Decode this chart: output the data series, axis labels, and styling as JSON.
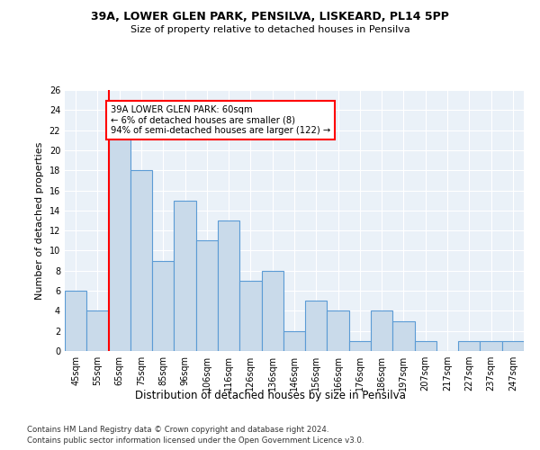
{
  "title1": "39A, LOWER GLEN PARK, PENSILVA, LISKEARD, PL14 5PP",
  "title2": "Size of property relative to detached houses in Pensilva",
  "xlabel": "Distribution of detached houses by size in Pensilva",
  "ylabel": "Number of detached properties",
  "categories": [
    "45sqm",
    "55sqm",
    "65sqm",
    "75sqm",
    "85sqm",
    "96sqm",
    "106sqm",
    "116sqm",
    "126sqm",
    "136sqm",
    "146sqm",
    "156sqm",
    "166sqm",
    "176sqm",
    "186sqm",
    "197sqm",
    "207sqm",
    "217sqm",
    "227sqm",
    "237sqm",
    "247sqm"
  ],
  "values": [
    6,
    4,
    22,
    18,
    9,
    15,
    11,
    13,
    7,
    8,
    2,
    5,
    4,
    1,
    4,
    3,
    1,
    0,
    1,
    1,
    1
  ],
  "bar_color": "#c9daea",
  "bar_edge_color": "#5b9bd5",
  "annotation_text_line1": "39A LOWER GLEN PARK: 60sqm",
  "annotation_text_line2": "← 6% of detached houses are smaller (8)",
  "annotation_text_line3": "94% of semi-detached houses are larger (122) →",
  "annotation_box_color": "white",
  "annotation_box_edge_color": "red",
  "vline_color": "red",
  "vline_x": 1.5,
  "ylim": [
    0,
    26
  ],
  "yticks": [
    0,
    2,
    4,
    6,
    8,
    10,
    12,
    14,
    16,
    18,
    20,
    22,
    24,
    26
  ],
  "background_color": "#eaf1f8",
  "grid_color": "white",
  "footer_line1": "Contains HM Land Registry data © Crown copyright and database right 2024.",
  "footer_line2": "Contains public sector information licensed under the Open Government Licence v3.0."
}
